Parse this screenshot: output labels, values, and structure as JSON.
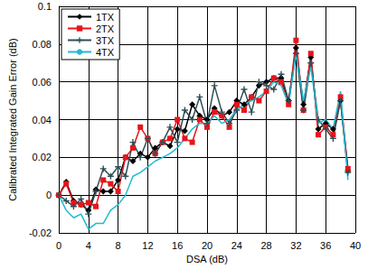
{
  "chart_data": {
    "type": "line",
    "x_label": "DSA (dB)",
    "y_label": "Calibrated Integrated Gain Error (dB)",
    "x": [
      0,
      1,
      2,
      3,
      4,
      5,
      6,
      7,
      8,
      9,
      10,
      11,
      12,
      13,
      14,
      15,
      16,
      17,
      18,
      19,
      20,
      21,
      22,
      23,
      24,
      25,
      26,
      27,
      28,
      29,
      30,
      31,
      32,
      33,
      34,
      35,
      36,
      37,
      38,
      39
    ],
    "series": [
      {
        "name": "1TX",
        "color": "#000000",
        "marker": "diamond",
        "values": [
          0,
          0.007,
          -0.003,
          -0.005,
          -0.008,
          0.003,
          0.002,
          0.002,
          0.008,
          0.02,
          0.018,
          0.022,
          0.02,
          0.025,
          0.028,
          0.026,
          0.035,
          0.034,
          0.048,
          0.042,
          0.04,
          0.046,
          0.042,
          0.044,
          0.05,
          0.048,
          0.052,
          0.058,
          0.06,
          0.062,
          0.062,
          0.05,
          0.078,
          0.048,
          0.073,
          0.035,
          0.038,
          0.035,
          0.05,
          0.013
        ]
      },
      {
        "name": "2TX",
        "color": "#e8141b",
        "marker": "square",
        "values": [
          0,
          0.006,
          -0.004,
          -0.005,
          -0.004,
          -0.006,
          0.008,
          0.006,
          0.002,
          0.02,
          0.025,
          0.036,
          0.03,
          0.022,
          0.028,
          0.03,
          0.04,
          0.03,
          0.028,
          0.04,
          0.036,
          0.044,
          0.042,
          0.036,
          0.048,
          0.045,
          0.052,
          0.05,
          0.055,
          0.062,
          0.06,
          0.048,
          0.082,
          0.045,
          0.075,
          0.032,
          0.036,
          0.032,
          0.052,
          0.014
        ]
      },
      {
        "name": "3TX",
        "color": "#2e4f57",
        "marker": "cross",
        "values": [
          0,
          -0.003,
          -0.006,
          -0.002,
          -0.01,
          0.002,
          0.014,
          0.01,
          0.015,
          0.01,
          0.028,
          0.02,
          0.03,
          0.022,
          0.028,
          0.036,
          0.028,
          0.045,
          0.04,
          0.052,
          0.038,
          0.058,
          0.044,
          0.038,
          0.045,
          0.056,
          0.044,
          0.06,
          0.058,
          0.056,
          0.064,
          0.05,
          0.075,
          0.045,
          0.07,
          0.04,
          0.035,
          0.03,
          0.05,
          0.012
        ]
      },
      {
        "name": "4TX",
        "color": "#1fbcd2",
        "marker": "none",
        "values": [
          0,
          -0.008,
          -0.012,
          -0.01,
          -0.018,
          -0.015,
          -0.015,
          -0.008,
          -0.005,
          0.0,
          0.01,
          0.012,
          0.015,
          0.018,
          0.02,
          0.022,
          0.025,
          0.03,
          0.035,
          0.038,
          0.038,
          0.042,
          0.038,
          0.04,
          0.045,
          0.048,
          0.05,
          0.052,
          0.055,
          0.06,
          0.058,
          0.048,
          0.075,
          0.05,
          0.068,
          0.038,
          0.04,
          0.035,
          0.055,
          0.008
        ]
      }
    ],
    "xlim": [
      0,
      40
    ],
    "xticks": [
      0,
      4,
      8,
      12,
      16,
      20,
      24,
      28,
      32,
      36,
      40
    ],
    "ylim": [
      -0.02,
      0.1
    ],
    "yticks": [
      -0.02,
      0,
      0.02,
      0.04,
      0.06,
      0.08,
      0.1
    ],
    "grid": true,
    "legend": "upper left"
  }
}
